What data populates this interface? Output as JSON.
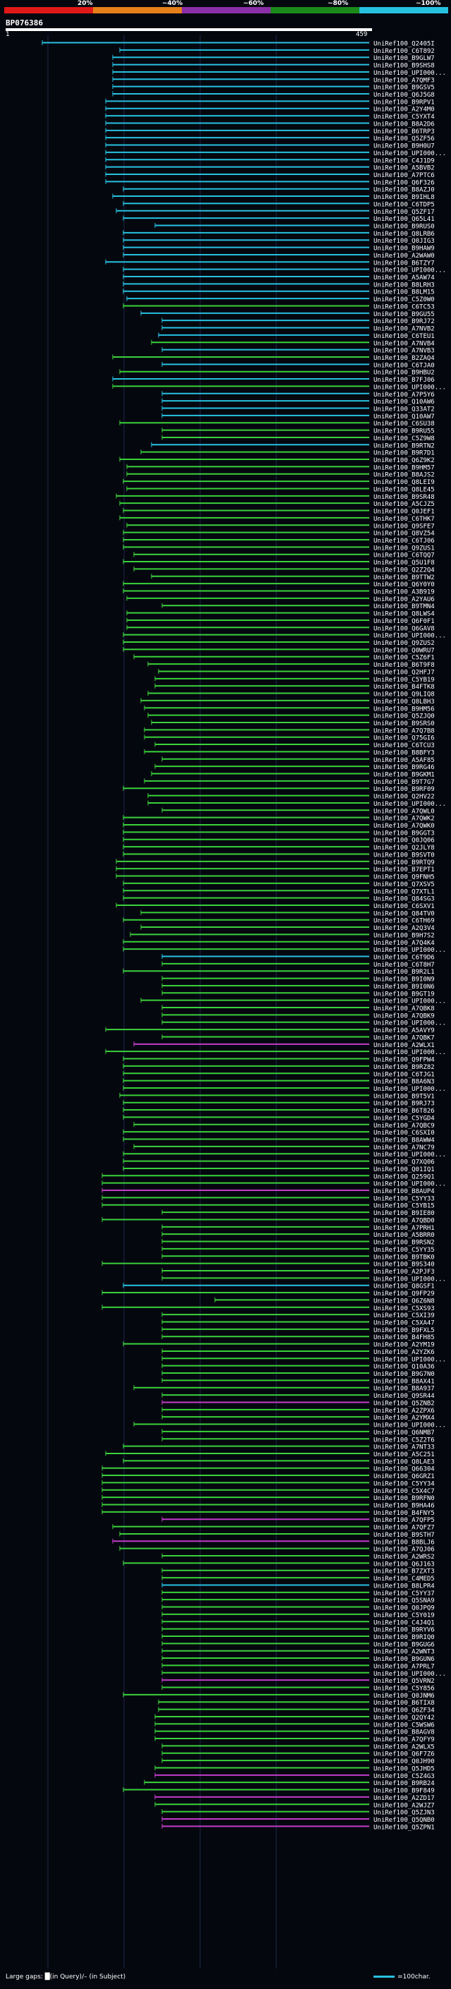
{
  "legend": {
    "colors": [
      "#e01818",
      "#e6801a",
      "#8a2fa8",
      "#1b8a1b",
      "#27c1e0"
    ],
    "labels": [
      "20%",
      "~40%",
      "~60%",
      "~80%",
      "~100%"
    ]
  },
  "query": {
    "id": "BP076386",
    "start": "1",
    "end": "459"
  },
  "footer": {
    "gaps_text": "Large gaps: █(in Query)/– (in Subject)",
    "scale_text": "=100char."
  },
  "hit_colors": {
    "cyan": "#27c1e0",
    "green": "#3ad13a",
    "magenta": "#c23cc8"
  },
  "hits": [
    {
      "label": "UniRef100_Q2405I",
      "color": "cyan"
    },
    {
      "label": "UniRef100_C6T892",
      "color": "cyan"
    },
    {
      "label": "UniRef100_B9GLW7",
      "color": "cyan"
    },
    {
      "label": "UniRef100_B9SHS8",
      "color": "cyan"
    },
    {
      "label": "UniRef100_UPI000...",
      "color": "cyan"
    },
    {
      "label": "UniRef100_A7QMF3",
      "color": "cyan"
    },
    {
      "label": "UniRef100_B9GSV5",
      "color": "cyan"
    },
    {
      "label": "UniRef100_Q6J5G8",
      "color": "cyan"
    },
    {
      "label": "UniRef100_B9RPV1",
      "color": "cyan"
    },
    {
      "label": "UniRef100_A2Y4M0",
      "color": "cyan"
    },
    {
      "label": "UniRef100_C5YXT4",
      "color": "cyan"
    },
    {
      "label": "UniRef100_B8A2D6",
      "color": "cyan"
    },
    {
      "label": "UniRef100_B6TRP3",
      "color": "cyan"
    },
    {
      "label": "UniRef100_Q5ZF56",
      "color": "cyan"
    },
    {
      "label": "UniRef100_B9H0U7",
      "color": "cyan"
    },
    {
      "label": "UniRef100_UPI000...",
      "color": "cyan"
    },
    {
      "label": "UniRef100_C4J1D9",
      "color": "cyan"
    },
    {
      "label": "UniRef100_A5BVB2",
      "color": "cyan"
    },
    {
      "label": "UniRef100_A7PTC6",
      "color": "cyan"
    },
    {
      "label": "UniRef100_Q6F326",
      "color": "cyan"
    },
    {
      "label": "UniRef100_B8AZJ0",
      "color": "cyan"
    },
    {
      "label": "UniRef100_B9IHL8",
      "color": "cyan"
    },
    {
      "label": "UniRef100_C6TDP5",
      "color": "cyan"
    },
    {
      "label": "UniRef100_Q5ZF17",
      "color": "cyan"
    },
    {
      "label": "UniRef100_Q65L41",
      "color": "cyan"
    },
    {
      "label": "UniRef100_B9RUS0",
      "color": "cyan"
    },
    {
      "label": "UniRef100_Q8LRB6",
      "color": "cyan"
    },
    {
      "label": "UniRef100_Q0JIG3",
      "color": "cyan"
    },
    {
      "label": "UniRef100_B9HAW9",
      "color": "cyan"
    },
    {
      "label": "UniRef100_A2WAW0",
      "color": "cyan"
    },
    {
      "label": "UniRef100_B6TZY7",
      "color": "cyan"
    },
    {
      "label": "UniRef100_UPI000...",
      "color": "cyan"
    },
    {
      "label": "UniRef100_A5AW74",
      "color": "cyan"
    },
    {
      "label": "UniRef100_B8LRH3",
      "color": "cyan"
    },
    {
      "label": "UniRef100_B8LM15",
      "color": "cyan"
    },
    {
      "label": "UniRef100_C5Z0W0",
      "color": "cyan"
    },
    {
      "label": "UniRef100_C6TC53",
      "color": "green"
    },
    {
      "label": "UniRef100_B9GU55",
      "color": "cyan"
    },
    {
      "label": "UniRef100_B9RJ72",
      "color": "cyan"
    },
    {
      "label": "UniRef100_A7NVB2",
      "color": "cyan"
    },
    {
      "label": "UniRef100_C6TEU1",
      "color": "cyan"
    },
    {
      "label": "UniRef100_A7NVB4",
      "color": "green"
    },
    {
      "label": "UniRef100_A7NVB3",
      "color": "cyan"
    },
    {
      "label": "UniRef100_B2ZAQ4",
      "color": "green"
    },
    {
      "label": "UniRef100_C6TJA0",
      "color": "cyan"
    },
    {
      "label": "UniRef100_B9HBU2",
      "color": "green"
    },
    {
      "label": "UniRef100_B7FJ06",
      "color": "cyan"
    },
    {
      "label": "UniRef100_UPI000...",
      "color": "green"
    },
    {
      "label": "UniRef100_A7P5Y6",
      "color": "cyan"
    },
    {
      "label": "UniRef100_Q10AW6",
      "color": "cyan"
    },
    {
      "label": "UniRef100_Q33AT2",
      "color": "cyan"
    },
    {
      "label": "UniRef100_Q10AW7",
      "color": "cyan"
    },
    {
      "label": "UniRef100_C6SU38",
      "color": "green"
    },
    {
      "label": "UniRef100_B9RU55",
      "color": "green"
    },
    {
      "label": "UniRef100_C5Z9W8",
      "color": "green"
    },
    {
      "label": "UniRef100_B9RTN2",
      "color": "cyan"
    },
    {
      "label": "UniRef100_B9R7D1",
      "color": "green"
    },
    {
      "label": "UniRef100_Q6Z9K2",
      "color": "green"
    },
    {
      "label": "UniRef100_B9HM57",
      "color": "green"
    },
    {
      "label": "UniRef100_B8AJS2",
      "color": "green"
    },
    {
      "label": "UniRef100_Q8LEI9",
      "color": "green"
    },
    {
      "label": "UniRef100_Q8LE45",
      "color": "green"
    },
    {
      "label": "UniRef100_B9SR48",
      "color": "green"
    },
    {
      "label": "UniRef100_A5CJZ5",
      "color": "green"
    },
    {
      "label": "UniRef100_Q0JEF1",
      "color": "green"
    },
    {
      "label": "UniRef100_C6THK7",
      "color": "green"
    },
    {
      "label": "UniRef100_Q9SFE7",
      "color": "green"
    },
    {
      "label": "UniRef100_Q8VZ54",
      "color": "green"
    },
    {
      "label": "UniRef100_C6TJ06",
      "color": "green"
    },
    {
      "label": "UniRef100_Q9ZUS1",
      "color": "green"
    },
    {
      "label": "UniRef100_C6TQQ7",
      "color": "green"
    },
    {
      "label": "UniRef100_Q5U1F8",
      "color": "green"
    },
    {
      "label": "UniRef100_Q2Z2Q4",
      "color": "green"
    },
    {
      "label": "UniRef100_B9TTW2",
      "color": "green"
    },
    {
      "label": "UniRef100_Q6Y0Y0",
      "color": "green"
    },
    {
      "label": "UniRef100_A3B919",
      "color": "green"
    },
    {
      "label": "UniRef100_A2YAU6",
      "color": "green"
    },
    {
      "label": "UniRef100_B9TMN4",
      "color": "green"
    },
    {
      "label": "UniRef100_Q8LWS4",
      "color": "green"
    },
    {
      "label": "UniRef100_Q6F0F1",
      "color": "green"
    },
    {
      "label": "UniRef100_Q6GAV8",
      "color": "green"
    },
    {
      "label": "UniRef100_UPI000...",
      "color": "green"
    },
    {
      "label": "UniRef100_Q9ZUS2",
      "color": "green"
    },
    {
      "label": "UniRef100_Q0WRU7",
      "color": "green"
    },
    {
      "label": "UniRef100_C5Z6F1",
      "color": "green"
    },
    {
      "label": "UniRef100_B6T9F8",
      "color": "green"
    },
    {
      "label": "UniRef100_Q2HFJ7",
      "color": "green"
    },
    {
      "label": "UniRef100_C5YB19",
      "color": "green"
    },
    {
      "label": "UniRef100_B4FTK8",
      "color": "green"
    },
    {
      "label": "UniRef100_Q9LIQ8",
      "color": "green"
    },
    {
      "label": "UniRef100_Q8LBH3",
      "color": "green"
    },
    {
      "label": "UniRef100_B9HM56",
      "color": "green"
    },
    {
      "label": "UniRef100_Q5ZJQ0",
      "color": "green"
    },
    {
      "label": "UniRef100_B9SRS0",
      "color": "green"
    },
    {
      "label": "UniRef100_A7Q7B8",
      "color": "green"
    },
    {
      "label": "UniRef100_Q75GI6",
      "color": "green"
    },
    {
      "label": "UniRef100_C6TCU3",
      "color": "green"
    },
    {
      "label": "UniRef100_B8BFY3",
      "color": "green"
    },
    {
      "label": "UniRef100_A5AF85",
      "color": "green"
    },
    {
      "label": "UniRef100_B9RG46",
      "color": "green"
    },
    {
      "label": "UniRef100_B9GKM1",
      "color": "green"
    },
    {
      "label": "UniRef100_B9T7G7",
      "color": "green"
    },
    {
      "label": "UniRef100_B9RF09",
      "color": "green"
    },
    {
      "label": "UniRef100_Q2HV22",
      "color": "green"
    },
    {
      "label": "UniRef100_UPI000...",
      "color": "green"
    },
    {
      "label": "UniRef100_A7QWL0",
      "color": "green"
    },
    {
      "label": "UniRef100_A7QWK2",
      "color": "green"
    },
    {
      "label": "UniRef100_A7QWK0",
      "color": "green"
    },
    {
      "label": "UniRef100_B9GGT3",
      "color": "green"
    },
    {
      "label": "UniRef100_Q0JQ06",
      "color": "green"
    },
    {
      "label": "UniRef100_Q2JLY8",
      "color": "green"
    },
    {
      "label": "UniRef100_B9SVT0",
      "color": "green"
    },
    {
      "label": "UniRef100_B9RTQ9",
      "color": "green"
    },
    {
      "label": "UniRef100_B7EPT1",
      "color": "green"
    },
    {
      "label": "UniRef100_Q9FNH5",
      "color": "green"
    },
    {
      "label": "UniRef100_Q7XSV5",
      "color": "green"
    },
    {
      "label": "UniRef100_Q7XTL1",
      "color": "green"
    },
    {
      "label": "UniRef100_Q84SG3",
      "color": "green"
    },
    {
      "label": "UniRef100_C6SXV1",
      "color": "green"
    },
    {
      "label": "UniRef100_Q84TV0",
      "color": "green"
    },
    {
      "label": "UniRef100_C6TH69",
      "color": "green"
    },
    {
      "label": "UniRef100_A2Q3V4",
      "color": "green"
    },
    {
      "label": "UniRef100_B9H7S2",
      "color": "green"
    },
    {
      "label": "UniRef100_A7Q4K4",
      "color": "green"
    },
    {
      "label": "UniRef100_UPI000...",
      "color": "green"
    },
    {
      "label": "UniRef100_C6T9D6",
      "color": "cyan"
    },
    {
      "label": "UniRef100_C6T8H7",
      "color": "green"
    },
    {
      "label": "UniRef100_B9R2L1",
      "color": "green"
    },
    {
      "label": "UniRef100_B9I0N9",
      "color": "green"
    },
    {
      "label": "UniRef100_B9I0N6",
      "color": "green"
    },
    {
      "label": "UniRef100_B9GT19",
      "color": "green"
    },
    {
      "label": "UniRef100_UPI000...",
      "color": "green"
    },
    {
      "label": "UniRef100_A7QBK8",
      "color": "green"
    },
    {
      "label": "UniRef100_A7QBK9",
      "color": "green"
    },
    {
      "label": "UniRef100_UPI000...",
      "color": "green"
    },
    {
      "label": "UniRef100_A5AVY9",
      "color": "green"
    },
    {
      "label": "UniRef100_A7QBK7",
      "color": "green"
    },
    {
      "label": "UniRef100_A2WLX1",
      "color": "magenta"
    },
    {
      "label": "UniRef100_UPI000...",
      "color": "green"
    },
    {
      "label": "UniRef100_Q9FPW4",
      "color": "green"
    },
    {
      "label": "UniRef100_B9RZ82",
      "color": "green"
    },
    {
      "label": "UniRef100_C6TJG1",
      "color": "green"
    },
    {
      "label": "UniRef100_B8A6N3",
      "color": "green"
    },
    {
      "label": "UniRef100_UPI000...",
      "color": "green"
    },
    {
      "label": "UniRef100_B9T5V1",
      "color": "green"
    },
    {
      "label": "UniRef100_B9RJ73",
      "color": "green"
    },
    {
      "label": "UniRef100_B6T826",
      "color": "green"
    },
    {
      "label": "UniRef100_C5YGD4",
      "color": "green"
    },
    {
      "label": "UniRef100_A7QBC9",
      "color": "green"
    },
    {
      "label": "UniRef100_C6SXI0",
      "color": "green"
    },
    {
      "label": "UniRef100_B8AWW4",
      "color": "green"
    },
    {
      "label": "UniRef100_A7NC79",
      "color": "green"
    },
    {
      "label": "UniRef100_UPI000...",
      "color": "green"
    },
    {
      "label": "UniRef100_Q7XQ06",
      "color": "green"
    },
    {
      "label": "UniRef100_Q01IQ1",
      "color": "green"
    },
    {
      "label": "UniRef100_Q259Q1",
      "color": "green"
    },
    {
      "label": "UniRef100_UPI000...",
      "color": "green"
    },
    {
      "label": "UniRef100_B8AUP4",
      "color": "magenta"
    },
    {
      "label": "UniRef100_C5YY33",
      "color": "green"
    },
    {
      "label": "UniRef100_C5YB15",
      "color": "green"
    },
    {
      "label": "UniRef100_B9IE80",
      "color": "green"
    },
    {
      "label": "UniRef100_A7QBD0",
      "color": "green"
    },
    {
      "label": "UniRef100_A7PRH1",
      "color": "green"
    },
    {
      "label": "UniRef100_A5BRR0",
      "color": "green"
    },
    {
      "label": "UniRef100_B9RSN2",
      "color": "green"
    },
    {
      "label": "UniRef100_C5YY35",
      "color": "green"
    },
    {
      "label": "UniRef100_B9TBK0",
      "color": "green"
    },
    {
      "label": "UniRef100_B9S340",
      "color": "green"
    },
    {
      "label": "UniRef100_A2PJF3",
      "color": "green"
    },
    {
      "label": "UniRef100_UPI000...",
      "color": "green"
    },
    {
      "label": "UniRef100_Q8GSF1",
      "color": "cyan"
    },
    {
      "label": "UniRef100_Q9FP29",
      "color": "green"
    },
    {
      "label": "UniRef100_Q6Z6N8",
      "color": "green"
    },
    {
      "label": "UniRef100_C5XS93",
      "color": "green"
    },
    {
      "label": "UniRef100_C5XI39",
      "color": "green"
    },
    {
      "label": "UniRef100_C5XA47",
      "color": "green"
    },
    {
      "label": "UniRef100_B9FXL5",
      "color": "green"
    },
    {
      "label": "UniRef100_B4FH85",
      "color": "green"
    },
    {
      "label": "UniRef100_A2YM19",
      "color": "green"
    },
    {
      "label": "UniRef100_A2YZK6",
      "color": "green"
    },
    {
      "label": "UniRef100_UPI000...",
      "color": "green"
    },
    {
      "label": "UniRef100_Q10A36",
      "color": "green"
    },
    {
      "label": "UniRef100_B9G7N0",
      "color": "green"
    },
    {
      "label": "UniRef100_B8AX41",
      "color": "green"
    },
    {
      "label": "UniRef100_B8A937",
      "color": "green"
    },
    {
      "label": "UniRef100_Q9SR44",
      "color": "green"
    },
    {
      "label": "UniRef100_Q5ZNB2",
      "color": "magenta"
    },
    {
      "label": "UniRef100_A2ZPX6",
      "color": "green"
    },
    {
      "label": "UniRef100_A2YMX4",
      "color": "green"
    },
    {
      "label": "UniRef100_UPI000...",
      "color": "green"
    },
    {
      "label": "UniRef100_Q6NMB7",
      "color": "green"
    },
    {
      "label": "UniRef100_C5Z2T6",
      "color": "green"
    },
    {
      "label": "UniRef100_A7NT33",
      "color": "green"
    },
    {
      "label": "UniRef100_A5C251",
      "color": "green"
    },
    {
      "label": "UniRef100_Q8LAE3",
      "color": "green"
    },
    {
      "label": "UniRef100_Q66304",
      "color": "green"
    },
    {
      "label": "UniRef100_Q6GRZ1",
      "color": "green"
    },
    {
      "label": "UniRef100_C5YY34",
      "color": "green"
    },
    {
      "label": "UniRef100_C5X4C7",
      "color": "green"
    },
    {
      "label": "UniRef100_B9RFN0",
      "color": "green"
    },
    {
      "label": "UniRef100_B9HA46",
      "color": "green"
    },
    {
      "label": "UniRef100_B4FNY5",
      "color": "green"
    },
    {
      "label": "UniRef100_A7QFP5",
      "color": "magenta"
    },
    {
      "label": "UniRef100_A7QFZ7",
      "color": "green"
    },
    {
      "label": "UniRef100_B9STH7",
      "color": "green"
    },
    {
      "label": "UniRef100_B8BLJ6",
      "color": "magenta"
    },
    {
      "label": "UniRef100_A7QJ06",
      "color": "green"
    },
    {
      "label": "UniRef100_A2WRS2",
      "color": "green"
    },
    {
      "label": "UniRef100_Q6J163",
      "color": "green"
    },
    {
      "label": "UniRef100_B7ZXT3",
      "color": "green"
    },
    {
      "label": "UniRef100_C4MED5",
      "color": "green"
    },
    {
      "label": "UniRef100_B8LPR4",
      "color": "cyan"
    },
    {
      "label": "UniRef100_C5YY37",
      "color": "green"
    },
    {
      "label": "UniRef100_Q5SNA9",
      "color": "green"
    },
    {
      "label": "UniRef100_Q0JPQ9",
      "color": "green"
    },
    {
      "label": "UniRef100_C5Y019",
      "color": "green"
    },
    {
      "label": "UniRef100_C4J4Q1",
      "color": "green"
    },
    {
      "label": "UniRef100_B9RYV6",
      "color": "green"
    },
    {
      "label": "UniRef100_B9RIQ0",
      "color": "green"
    },
    {
      "label": "UniRef100_B9GUG6",
      "color": "green"
    },
    {
      "label": "UniRef100_A2WNT3",
      "color": "green"
    },
    {
      "label": "UniRef100_B9GUN6",
      "color": "green"
    },
    {
      "label": "UniRef100_A7PRL7",
      "color": "green"
    },
    {
      "label": "UniRef100_UPI000...",
      "color": "green"
    },
    {
      "label": "UniRef100_Q5VRN2",
      "color": "magenta"
    },
    {
      "label": "UniRef100_C5Y856",
      "color": "green"
    },
    {
      "label": "UniRef100_Q0JNM6",
      "color": "green"
    },
    {
      "label": "UniRef100_B6TIX8",
      "color": "green"
    },
    {
      "label": "UniRef100_Q6ZF34",
      "color": "green"
    },
    {
      "label": "UniRef100_Q2QY42",
      "color": "green"
    },
    {
      "label": "UniRef100_C5WSW6",
      "color": "green"
    },
    {
      "label": "UniRef100_B8AGV8",
      "color": "green"
    },
    {
      "label": "UniRef100_A7QFY9",
      "color": "green"
    },
    {
      "label": "UniRef100_A2WLX5",
      "color": "green"
    },
    {
      "label": "UniRef100_Q6F7Z6",
      "color": "green"
    },
    {
      "label": "UniRef100_Q0JH90",
      "color": "green"
    },
    {
      "label": "UniRef100_Q5JHD5",
      "color": "green"
    },
    {
      "label": "UniRef100_C5Z4G3",
      "color": "magenta"
    },
    {
      "label": "UniRef100_B9RB24",
      "color": "green"
    },
    {
      "label": "UniRef100_B9F849",
      "color": "green"
    },
    {
      "label": "UniRef100_A2ZD17",
      "color": "magenta"
    },
    {
      "label": "UniRef100_A2WJZ7",
      "color": "green"
    },
    {
      "label": "UniRef100_Q5ZJN3",
      "color": "green"
    },
    {
      "label": "UniRef100_Q5QNB0",
      "color": "magenta"
    },
    {
      "label": "UniRef100_Q5ZPN1",
      "color": "magenta"
    }
  ]
}
